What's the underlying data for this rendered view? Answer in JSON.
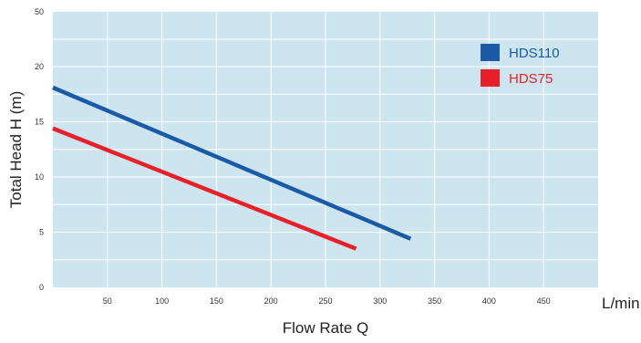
{
  "chart_data": {
    "type": "line",
    "xlabel": "Flow Rate Q",
    "ylabel": "Total Head H (m)",
    "x_unit": "L/min",
    "xlim": [
      0,
      500
    ],
    "ylim": [
      0,
      50
    ],
    "x_ticks": [
      50,
      100,
      150,
      200,
      250,
      300,
      350,
      400,
      450
    ],
    "y_ticks": [
      0,
      5,
      10,
      15,
      20,
      50
    ],
    "y_tick_labels": [
      "0",
      "5",
      "10",
      "15",
      "20",
      "50"
    ],
    "grid": true,
    "legend_position": "top-right",
    "background_color": "#cce5ef",
    "series": [
      {
        "name": "HDS110",
        "color": "#1a5aa6",
        "x": [
          0,
          328
        ],
        "y": [
          18.1,
          4.4
        ]
      },
      {
        "name": "HDS75",
        "color": "#e8202a",
        "x": [
          0,
          278
        ],
        "y": [
          14.4,
          3.5
        ]
      }
    ]
  }
}
